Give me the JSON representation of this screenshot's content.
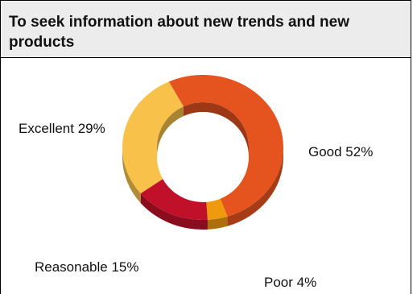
{
  "title": "To seek information about new trends and new products",
  "chart_data": {
    "type": "pie",
    "style": "3d-donut",
    "title": "To seek information about new trends and new products",
    "slices": [
      {
        "label": "Good",
        "value": 52,
        "color": "#e5531f",
        "text": "Good 52%"
      },
      {
        "label": "Poor",
        "value": 4,
        "color": "#ef9a0e",
        "text": "Poor 4%"
      },
      {
        "label": "Reasonable",
        "value": 15,
        "color": "#c0102a",
        "text": "Reasonable 15%"
      },
      {
        "label": "Excellent",
        "value": 29,
        "color": "#f7c14a",
        "text": "Excellent 29%"
      }
    ]
  }
}
